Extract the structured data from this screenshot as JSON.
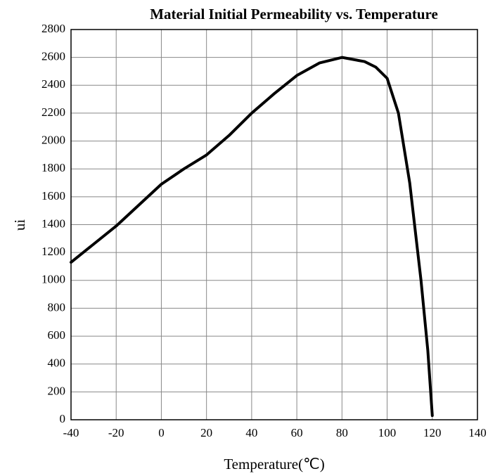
{
  "chart_data": {
    "type": "line",
    "title": "Material Initial Permeability vs. Temperature",
    "xlabel": "Temperature(℃)",
    "ylabel": "ui",
    "x": [
      -40,
      -30,
      -20,
      -10,
      0,
      10,
      20,
      30,
      40,
      50,
      60,
      70,
      80,
      90,
      95,
      100,
      105,
      110,
      115,
      118,
      120
    ],
    "values": [
      1130,
      1260,
      1390,
      1540,
      1690,
      1800,
      1900,
      2040,
      2200,
      2340,
      2470,
      2560,
      2600,
      2570,
      2530,
      2450,
      2200,
      1700,
      1000,
      500,
      30
    ],
    "color": "#000000",
    "xlim": [
      -40,
      140
    ],
    "xticks": [
      -40,
      -20,
      0,
      20,
      40,
      60,
      80,
      100,
      120,
      140
    ],
    "ylim": [
      0,
      2800
    ],
    "yticks": [
      0,
      200,
      400,
      600,
      800,
      1000,
      1200,
      1400,
      1600,
      1800,
      2000,
      2200,
      2400,
      2600,
      2800
    ],
    "grid": true
  }
}
